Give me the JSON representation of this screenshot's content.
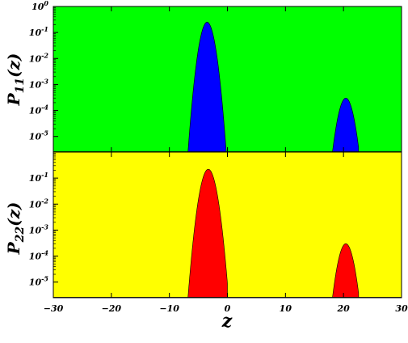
{
  "chart_data": [
    {
      "type": "area",
      "panel": "top",
      "ylabel": "P11(z)",
      "ylabel_parts": {
        "main": "P",
        "sub": "11",
        "arg": "(z)"
      },
      "yscale": "log",
      "ylim_exp": [
        -5.6,
        0
      ],
      "xlim": [
        -30,
        30
      ],
      "background": "#00ff00",
      "fill": "#0000ff",
      "y_ticks": [
        {
          "base": "10",
          "exp": "0"
        },
        {
          "base": "10",
          "exp": "-1"
        },
        {
          "base": "10",
          "exp": "-2"
        },
        {
          "base": "10",
          "exp": "-3"
        },
        {
          "base": "10",
          "exp": "-4"
        },
        {
          "base": "10",
          "exp": "-5"
        }
      ],
      "peaks": [
        {
          "center": -3.5,
          "peak": 0.25,
          "start": -6.8,
          "end": -0.2
        },
        {
          "center": 20.4,
          "peak": 0.0003,
          "start": 18.1,
          "end": 22.6
        }
      ]
    },
    {
      "type": "area",
      "panel": "bottom",
      "ylabel": "P22(z)",
      "ylabel_parts": {
        "main": "P",
        "sub": "22",
        "arg": "(z)"
      },
      "yscale": "log",
      "ylim_exp": [
        -5.6,
        0
      ],
      "xlim": [
        -30,
        30
      ],
      "background": "#ffff00",
      "fill": "#ff0000",
      "y_ticks": [
        {
          "base": "10",
          "exp": "-1"
        },
        {
          "base": "10",
          "exp": "-2"
        },
        {
          "base": "10",
          "exp": "-3"
        },
        {
          "base": "10",
          "exp": "-4"
        },
        {
          "base": "10",
          "exp": "-5"
        }
      ],
      "peaks": [
        {
          "center": -3.3,
          "peak": 0.22,
          "start": -6.8,
          "end": 0.0
        },
        {
          "center": 20.4,
          "peak": 0.0003,
          "start": 18.1,
          "end": 22.6
        }
      ]
    }
  ],
  "x_axis": {
    "label": "z",
    "ticks": [
      "−30",
      "−20",
      "−10",
      "0",
      "10",
      "20",
      "30"
    ],
    "tick_values": [
      -30,
      -20,
      -10,
      0,
      10,
      20,
      30
    ]
  }
}
